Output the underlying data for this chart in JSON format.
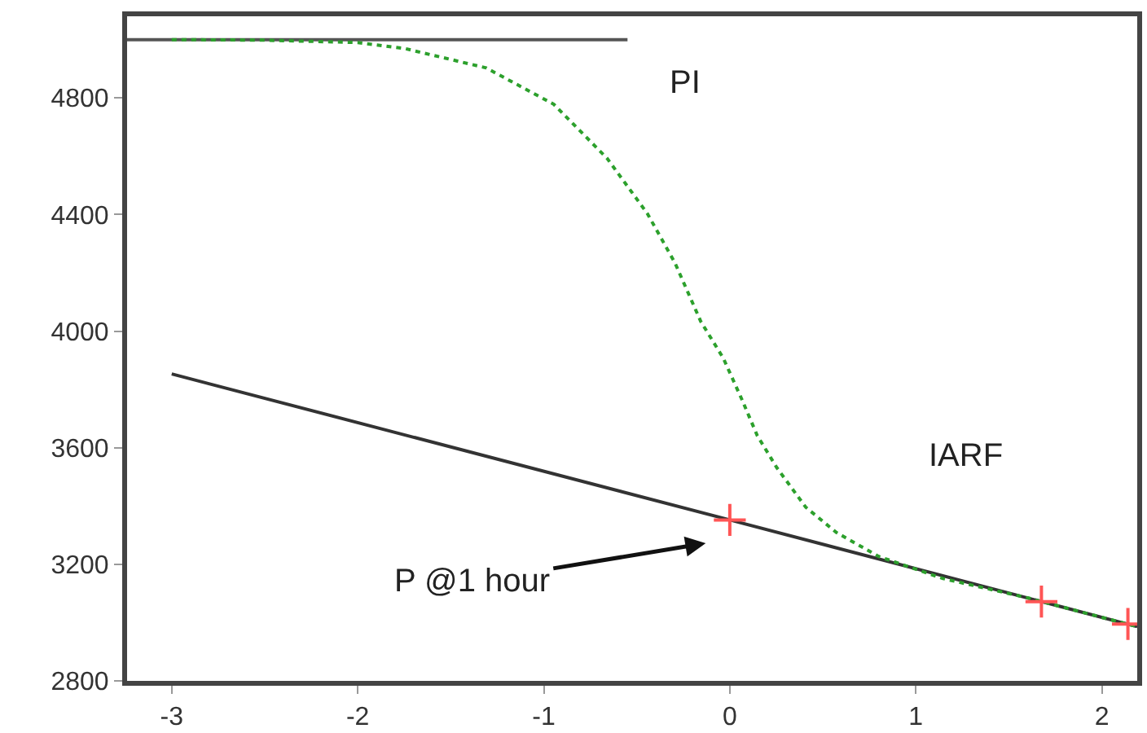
{
  "chart_data": {
    "type": "line",
    "xlim": [
      -3.24,
      2.19
    ],
    "xticks": [
      -3,
      -2,
      -1,
      0,
      1,
      2
    ],
    "ylim": [
      2800,
      5080
    ],
    "yticks": [
      2800,
      3200,
      3600,
      4000,
      4400,
      4800
    ],
    "grid": false,
    "series": [
      {
        "color": "#555555",
        "x": [
          -3.24,
          -0.55
        ],
        "values": [
          5000,
          5000
        ],
        "line_style": "solid"
      },
      {
        "color": "#333333",
        "x": [
          -3,
          0,
          2.19
        ],
        "values": [
          3853,
          3352,
          2986
        ],
        "line_style": "solid"
      },
      {
        "color": "#2ca02c",
        "line_style": "dotted",
        "x": [
          -3,
          -2.5,
          -2,
          -1.745,
          -1.31,
          -0.946,
          -0.66,
          -0.443,
          -0.295,
          -0.156,
          -0.035,
          0.061,
          0.148,
          0.252,
          0.408,
          0.573,
          0.8,
          1.146,
          1.6,
          2.19
        ],
        "values": [
          5000,
          4998,
          4990,
          4969,
          4903,
          4778,
          4593,
          4403,
          4234,
          4033,
          3907,
          3771,
          3641,
          3532,
          3396,
          3309,
          3227,
          3151,
          3085,
          2986
        ]
      },
      {
        "type": "scatter",
        "marker": "cross",
        "color": "#ff5555",
        "x": [
          0,
          1.675,
          2.14
        ],
        "values": [
          3352,
          3072,
          2995
        ]
      }
    ],
    "annotations": [
      "PI",
      "IARF",
      "P @1 hour"
    ]
  }
}
